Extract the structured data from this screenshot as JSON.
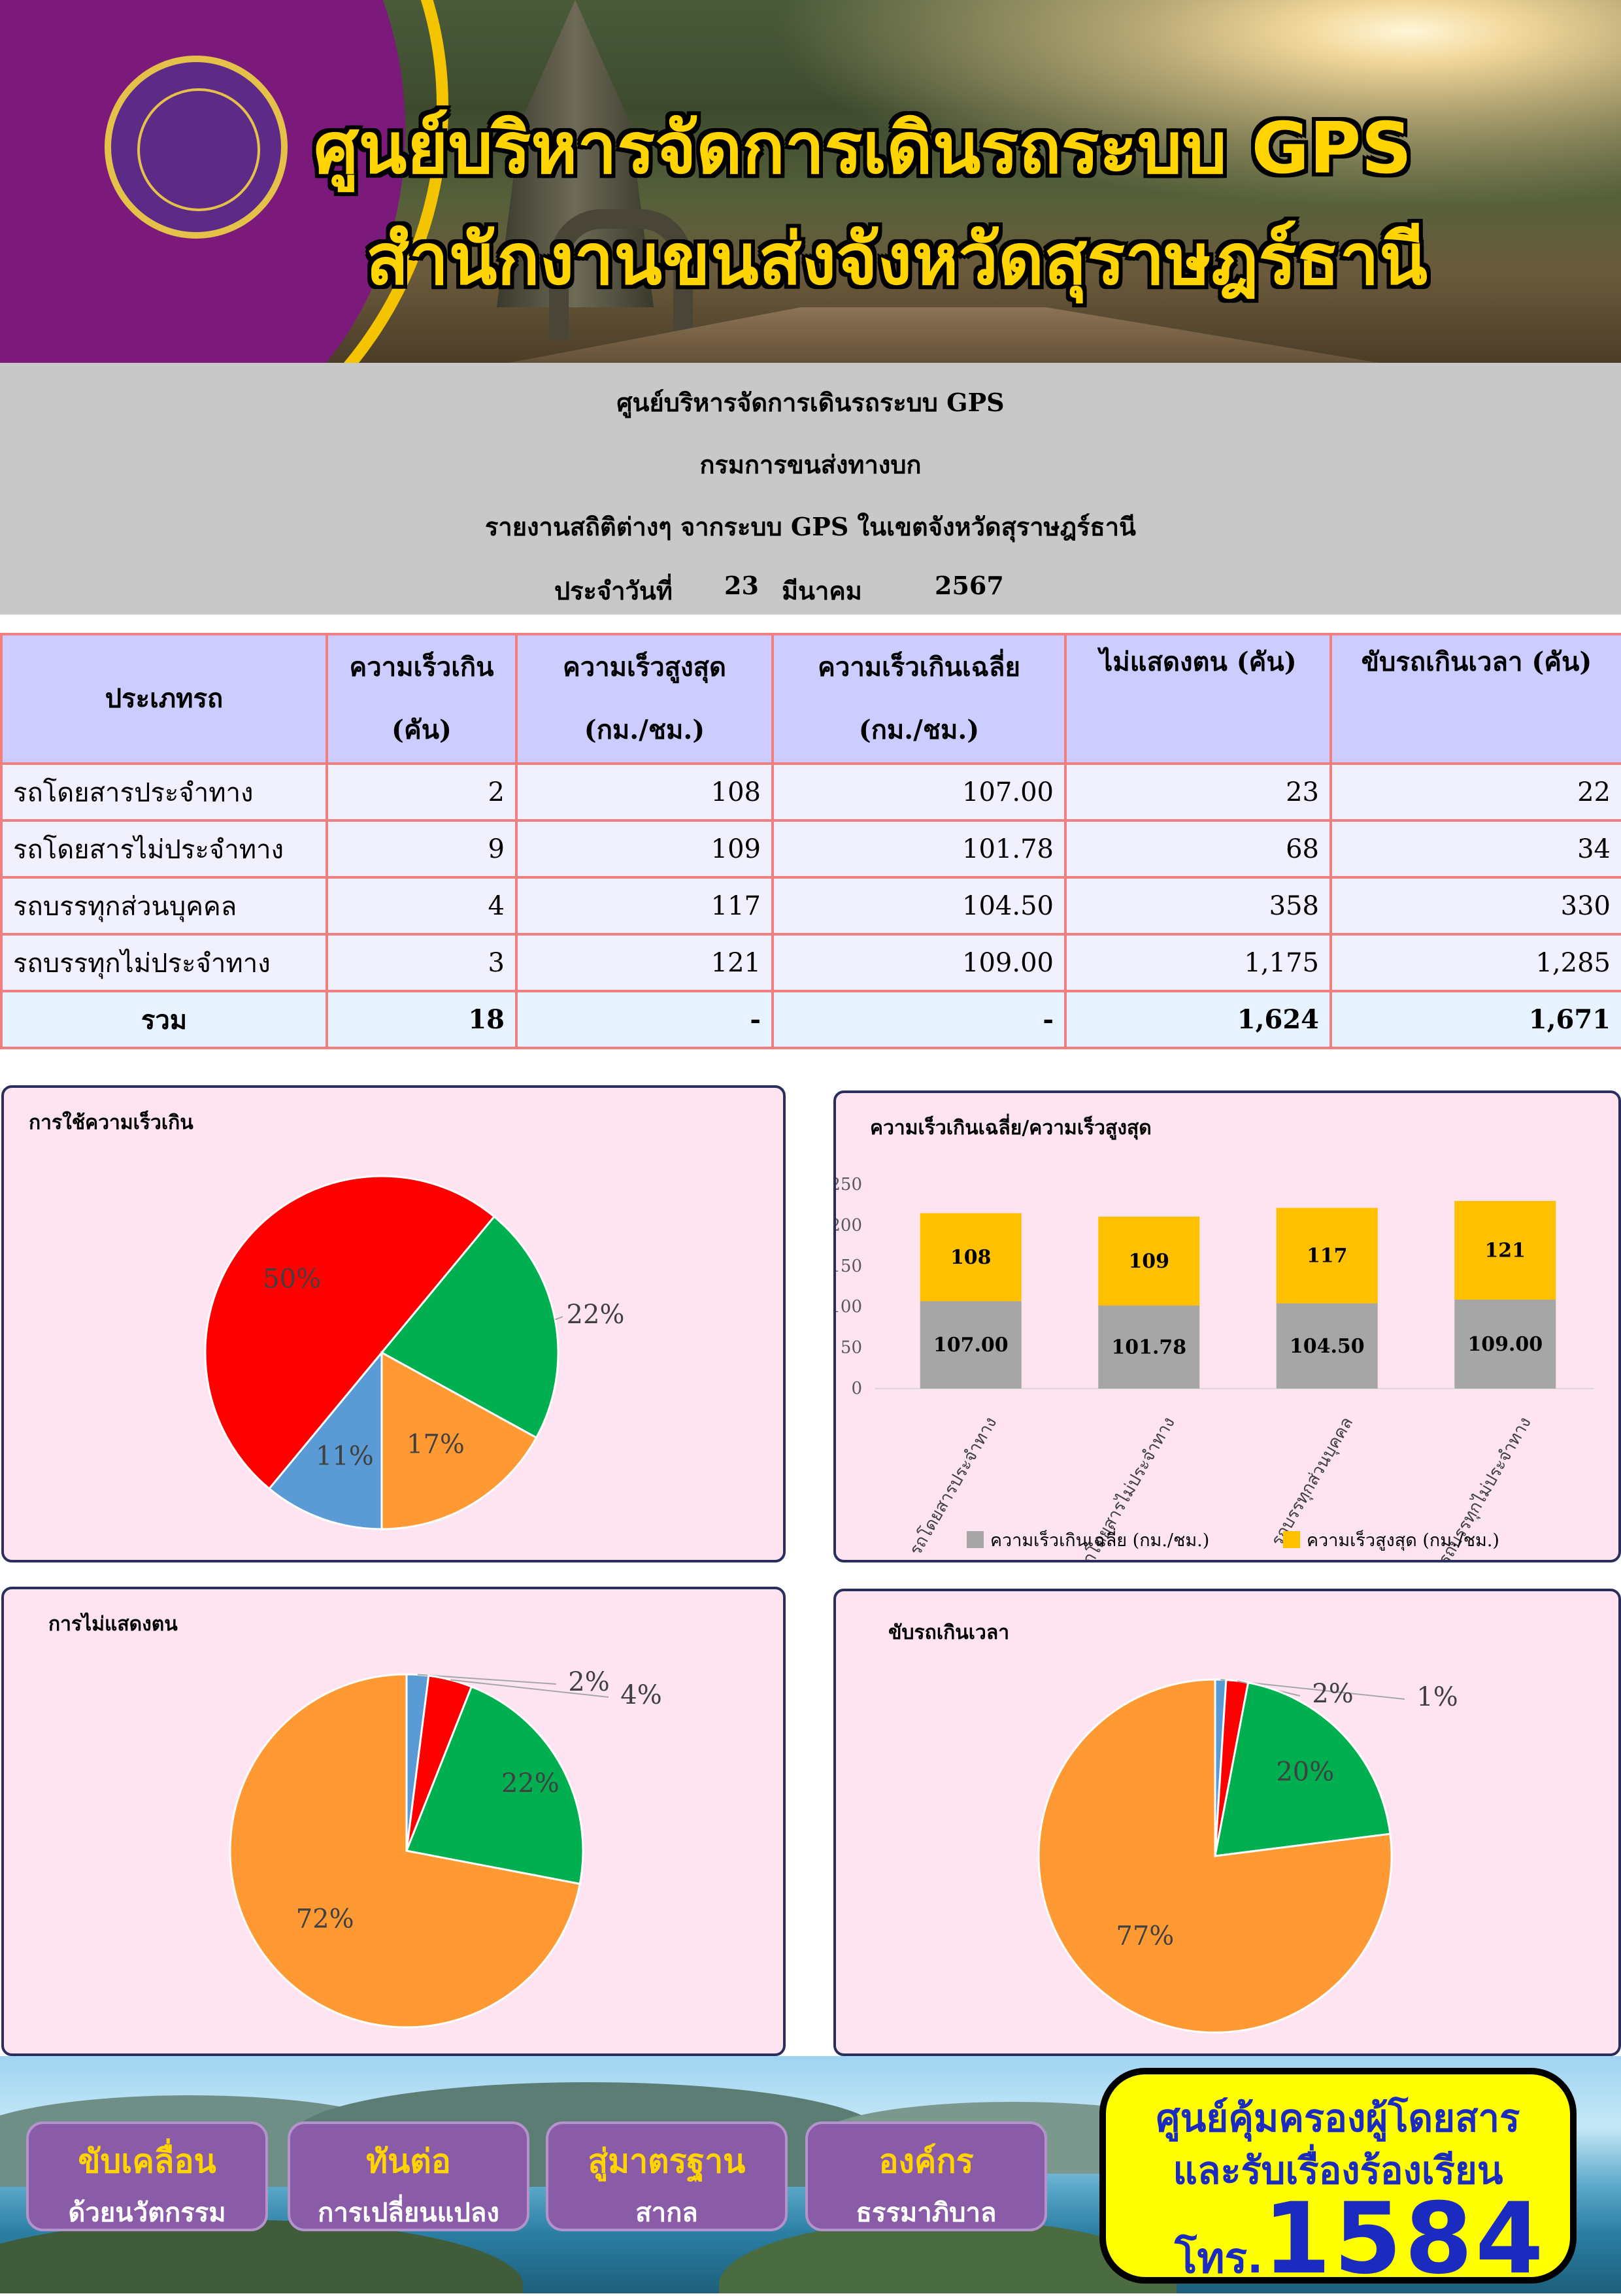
{
  "banner": {
    "title1": "ศูนย์บริหารจัดการเดินรถระบบ GPS",
    "title2": "สำนักงานขนส่งจังหวัดสุราษฎร์ธานี"
  },
  "header": {
    "line1": "ศูนย์บริหารจัดการเดินรถระบบ GPS",
    "line2": "กรมการขนส่งทางบก",
    "line3": "รายงานสถิติต่างๆ จากระบบ GPS ในเขตจังหวัดสุราษฎร์ธานี",
    "date_label": "ประจำวันที่",
    "day": "23",
    "month": "มีนาคม",
    "year": "2567"
  },
  "table": {
    "headers": [
      {
        "l1": "ประเภทรถ",
        "l2": ""
      },
      {
        "l1": "ความเร็วเกิน",
        "l2": "(คัน)"
      },
      {
        "l1": "ความเร็วสูงสุด",
        "l2": "(กม./ชม.)"
      },
      {
        "l1": "ความเร็วเกินเฉลี่ย",
        "l2": "(กม./ชม.)"
      },
      {
        "l1": "ไม่แสดงตน (คัน)",
        "l2": ""
      },
      {
        "l1": "ขับรถเกินเวลา (คัน)",
        "l2": ""
      }
    ],
    "rows": [
      [
        "รถโดยสารประจำทาง",
        "2",
        "108",
        "107.00",
        "23",
        "22"
      ],
      [
        "รถโดยสารไม่ประจำทาง",
        "9",
        "109",
        "101.78",
        "68",
        "34"
      ],
      [
        "รถบรรทุกส่วนบุคคล",
        "4",
        "117",
        "104.50",
        "358",
        "330"
      ],
      [
        "รถบรรทุกไม่ประจำทาง",
        "3",
        "121",
        "109.00",
        "1,175",
        "1,285"
      ]
    ],
    "total": [
      "รวม",
      "18",
      "-",
      "-",
      "1,624",
      "1,671"
    ]
  },
  "chart_data": [
    {
      "type": "pie",
      "title": "การใช้ความเร็วเกิน",
      "categories": [
        "รถโดยสารประจำทาง",
        "รถโดยสารไม่ประจำทาง",
        "รถบรรทุกส่วนบุคคล",
        "รถบรรทุกไม่ประจำทาง"
      ],
      "values": [
        11,
        50,
        22,
        17
      ],
      "labels": [
        "11%",
        "50%",
        "22%",
        "17%"
      ],
      "colors": [
        "#5b9bd5",
        "#ff0000",
        "#00b050",
        "#ff9933"
      ]
    },
    {
      "type": "bar",
      "stacked": true,
      "title": "ความเร็วเกินเฉลี่ย/ความเร็วสูงสุด",
      "categories": [
        "รถโดยสารประจำทาง",
        "รถโดยสารไม่ประจำทาง",
        "รถบรรทุกส่วนบุคคล",
        "รถบรรทุกไม่ประจำทาง"
      ],
      "series": [
        {
          "name": "ความเร็วเกินเฉลี่ย (กม./ชม.)",
          "values": [
            107.0,
            101.78,
            104.5,
            109.0
          ],
          "labels": [
            "107.00",
            "101.78",
            "104.50",
            "109.00"
          ],
          "color": "#a6a6a6"
        },
        {
          "name": "ความเร็วสูงสุด (กม./ชม.)",
          "values": [
            108,
            109,
            117,
            121
          ],
          "labels": [
            "108",
            "109",
            "117",
            "121"
          ],
          "color": "#ffc000"
        }
      ],
      "ylim": [
        0,
        250
      ],
      "yticks": [
        "0",
        "50",
        "100",
        "150",
        "200",
        "250"
      ],
      "legend": "bottom"
    },
    {
      "type": "pie",
      "title": "การไม่แสดงตน",
      "categories": [
        "รถโดยสารประจำทาง",
        "รถโดยสารไม่ประจำทาง",
        "รถบรรทุกส่วนบุคคล",
        "รถบรรทุกไม่ประจำทาง"
      ],
      "values": [
        2,
        4,
        22,
        72
      ],
      "labels": [
        "2%",
        "4%",
        "22%",
        "72%"
      ],
      "colors": [
        "#5b9bd5",
        "#ff0000",
        "#00b050",
        "#ff9933"
      ]
    },
    {
      "type": "pie",
      "title": "ขับรถเกินเวลา",
      "categories": [
        "รถโดยสารประจำทาง",
        "รถโดยสารไม่ประจำทาง",
        "รถบรรทุกส่วนบุคคล",
        "รถบรรทุกไม่ประจำทาง"
      ],
      "values": [
        1,
        2,
        20,
        77
      ],
      "labels": [
        "1%",
        "2%",
        "20%",
        "77%"
      ],
      "colors": [
        "#5b9bd5",
        "#ff0000",
        "#00b050",
        "#ff9933"
      ]
    }
  ],
  "footer": {
    "buttons": [
      {
        "l1": "ขับเคลื่อน",
        "l2": "ด้วยนวัตกรรม"
      },
      {
        "l1": "ทันต่อ",
        "l2": "การเปลี่ยนแปลง"
      },
      {
        "l1": "สู่มาตรฐาน",
        "l2": "สากล"
      },
      {
        "l1": "องค์กร",
        "l2": "ธรรมาภิบาล"
      }
    ],
    "call_line1": "ศูนย์คุ้มครองผู้โดยสาร",
    "call_line2": "และรับเรื่องร้องเรียน",
    "call_prefix": "โทร.",
    "call_number": "1584"
  }
}
